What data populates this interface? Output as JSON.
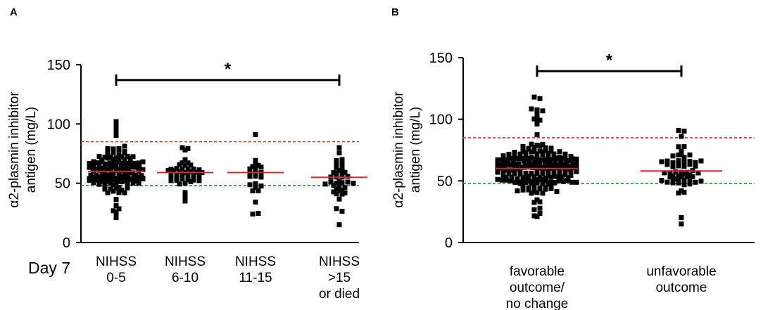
{
  "chart_data": [
    {
      "type": "scatter",
      "panel": "A",
      "ylabel": [
        "α2-plasmin inhibitor",
        "antigen (mg/L)"
      ],
      "ylim": [
        0,
        150
      ],
      "yticks": [
        "0",
        "50",
        "100",
        "150"
      ],
      "side_label": "Day 7",
      "reference_lines": [
        {
          "name": "upper-reference",
          "value": 85,
          "color": "#e03030"
        },
        {
          "name": "lower-reference",
          "value": 48,
          "color": "#2a8a3a"
        }
      ],
      "significance": {
        "from": 0,
        "to": 3,
        "y": 137,
        "label": "*"
      },
      "categories": [
        {
          "label": [
            "NIHSS",
            "0-5"
          ],
          "median": 60,
          "n": 150,
          "min": 21,
          "max": 102,
          "low": 42,
          "high": 90,
          "seed": 11
        },
        {
          "label": [
            "NIHSS",
            "6-10"
          ],
          "median": 59,
          "n": 46,
          "min": 35,
          "max": 80,
          "low": 45,
          "high": 76,
          "seed": 23
        },
        {
          "label": [
            "NIHSS",
            "11-15"
          ],
          "median": 59,
          "n": 26,
          "min": 24,
          "max": 91,
          "low": 40,
          "high": 84,
          "seed": 37
        },
        {
          "label": [
            "NIHSS",
            ">15",
            "or died"
          ],
          "median": 55,
          "n": 40,
          "min": 15,
          "max": 80,
          "low": 30,
          "high": 70,
          "seed": 51
        }
      ]
    },
    {
      "type": "scatter",
      "panel": "B",
      "ylabel": [
        "α2-plasmin inhibitor",
        "antigen (mg/L)"
      ],
      "ylim": [
        0,
        150
      ],
      "yticks": [
        "0",
        "50",
        "100",
        "150"
      ],
      "reference_lines": [
        {
          "name": "upper-reference",
          "value": 85,
          "color": "#e03030"
        },
        {
          "name": "lower-reference",
          "value": 48,
          "color": "#2a8a3a"
        }
      ],
      "significance": {
        "from": 0,
        "to": 1,
        "y": 139,
        "label": "*"
      },
      "categories": [
        {
          "label": [
            "favorable",
            "outcome/",
            "no change"
          ],
          "median": 60,
          "n": 220,
          "min": 21,
          "max": 118,
          "low": 40,
          "high": 85,
          "seed": 71
        },
        {
          "label": [
            "unfavorable",
            "outcome"
          ],
          "median": 58,
          "n": 60,
          "min": 15,
          "max": 91,
          "low": 30,
          "high": 75,
          "seed": 89
        }
      ]
    }
  ]
}
